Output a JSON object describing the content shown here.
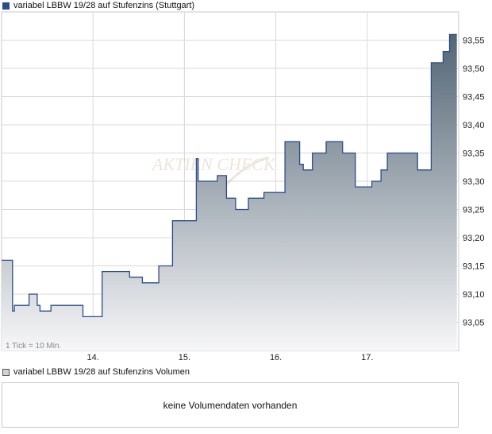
{
  "price_legend": "variabel LBBW 19/28 auf Stufenzins (Stuttgart)",
  "volume_legend": "variabel LBBW 19/28 auf Stufenzins Volumen",
  "tick_note": "1 Tick = 10 Min.",
  "watermark": "AKTIEN CHECK",
  "no_volume_text": "keine Volumendaten vorhanden",
  "colors": {
    "line": "#2b4c8c",
    "fill_top": "#536575",
    "fill_bottom": "#f7f7f8",
    "grid": "#d9d9d9",
    "volume_legend_box": "#bdbdbd"
  },
  "chart_data": {
    "type": "area",
    "title": "variabel LBBW 19/28 auf Stufenzins (Stuttgart)",
    "x_tick_labels": [
      "14.",
      "15.",
      "16.",
      "17."
    ],
    "x_tick_positions": [
      10,
      20,
      30,
      40
    ],
    "xlim": [
      0,
      50
    ],
    "ylim": [
      93.0,
      93.6
    ],
    "y_ticks": [
      "93,05",
      "93,10",
      "93,15",
      "93,20",
      "93,25",
      "93,30",
      "93,35",
      "93,40",
      "93,45",
      "93,50",
      "93,55"
    ],
    "y_tick_values": [
      93.05,
      93.1,
      93.15,
      93.2,
      93.25,
      93.3,
      93.35,
      93.4,
      93.45,
      93.5,
      93.55
    ],
    "grid": true,
    "series": [
      {
        "x": [
          0,
          1.2,
          1.4,
          3.0,
          3.9,
          4.2,
          5.4,
          8.9,
          11.0,
          14.0,
          15.4,
          17.2,
          18.7,
          21.3,
          21.5,
          23.6,
          24.6,
          25.6,
          27.0,
          28.7,
          31.0,
          32.6,
          33.0,
          34.0,
          35.5,
          37.3,
          38.7,
          40.5,
          41.5,
          42.2,
          43.3,
          45.5,
          47.0,
          48.3,
          49.0,
          49.8
        ],
        "y": [
          93.16,
          93.07,
          93.08,
          93.1,
          93.08,
          93.07,
          93.08,
          93.06,
          93.14,
          93.13,
          93.12,
          93.15,
          93.23,
          93.34,
          93.3,
          93.31,
          93.27,
          93.25,
          93.27,
          93.28,
          93.37,
          93.33,
          93.32,
          93.35,
          93.37,
          93.35,
          93.29,
          93.3,
          93.32,
          93.35,
          93.35,
          93.32,
          93.51,
          93.53,
          93.56,
          93.56
        ]
      }
    ]
  }
}
